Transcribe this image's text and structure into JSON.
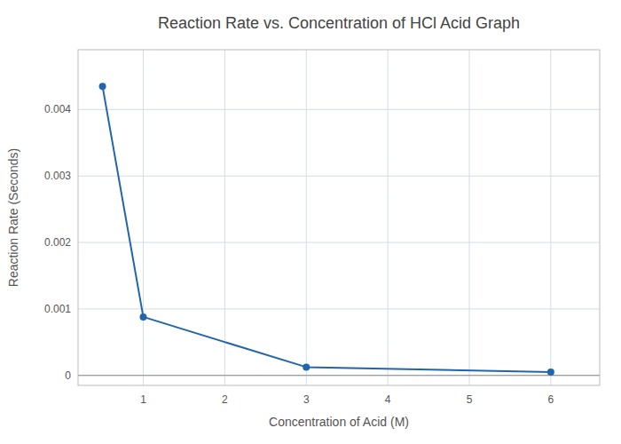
{
  "chart_data": {
    "type": "line",
    "title": "Reaction Rate vs. Concentration of HCl Acid Graph",
    "xlabel": "Concentration of Acid (M)",
    "ylabel": "Reaction Rate (Seconds)",
    "x": [
      0.5,
      1,
      3,
      6
    ],
    "values": [
      0.00435,
      0.00088,
      0.000125,
      5e-05
    ],
    "color": "#2166ac",
    "marker": "circle",
    "xlim": [
      0.2,
      6.6
    ],
    "ylim": [
      -0.00015,
      0.0049
    ],
    "xticks": [
      1,
      2,
      3,
      4,
      5,
      6
    ],
    "yticks": [
      0,
      0.001,
      0.002,
      0.003,
      0.004
    ],
    "grid": true
  }
}
